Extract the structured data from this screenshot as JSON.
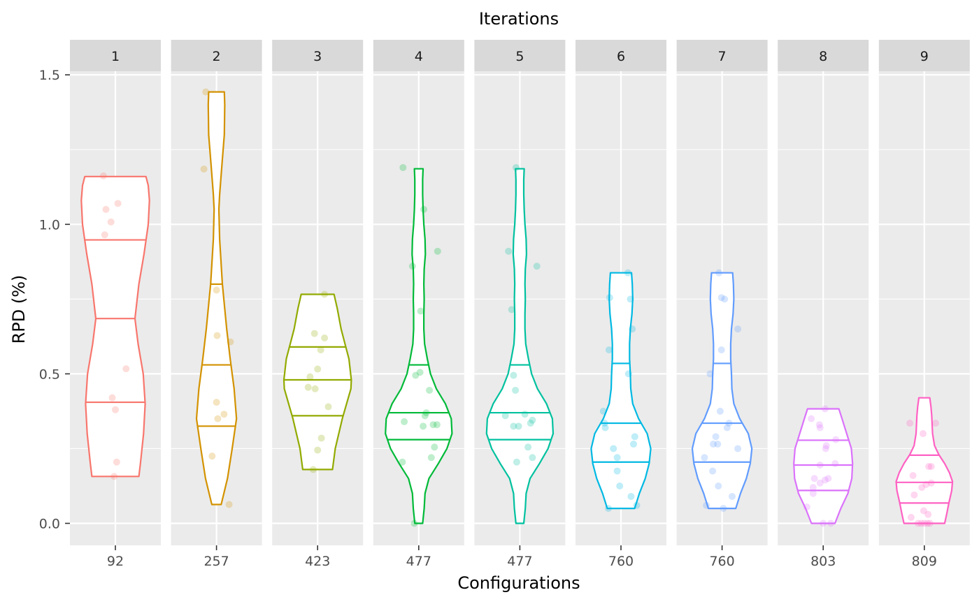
{
  "chart_data": {
    "type": "violin",
    "title": "Iterations",
    "xlabel": "Configurations",
    "ylabel": "RPD (%)",
    "ylim": [
      -0.075,
      1.61
    ],
    "yticks": [
      0.0,
      0.5,
      1.0,
      1.5
    ],
    "ytick_labels": [
      "0.0",
      "0.5",
      "1.0",
      "1.5"
    ],
    "grid": true,
    "legend": "none",
    "panels": [
      {
        "strip": "1",
        "configuration": "92",
        "color": "#F8766D",
        "quantiles": [
          0.405,
          0.685,
          0.948
        ],
        "profile": [
          [
            0.157,
            0.6
          ],
          [
            0.2,
            0.64
          ],
          [
            0.3,
            0.72
          ],
          [
            0.4,
            0.76
          ],
          [
            0.5,
            0.71
          ],
          [
            0.6,
            0.58
          ],
          [
            0.685,
            0.5
          ],
          [
            0.8,
            0.6
          ],
          [
            0.9,
            0.73
          ],
          [
            1.0,
            0.84
          ],
          [
            1.08,
            0.87
          ],
          [
            1.13,
            0.84
          ],
          [
            1.16,
            0.78
          ]
        ],
        "points": [
          [
            0.157,
            -0.02
          ],
          [
            0.205,
            0.02
          ],
          [
            0.38,
            0.0
          ],
          [
            0.42,
            -0.05
          ],
          [
            0.517,
            0.17
          ],
          [
            0.965,
            -0.17
          ],
          [
            1.008,
            -0.07
          ],
          [
            1.05,
            -0.15
          ],
          [
            1.07,
            0.04
          ],
          [
            1.162,
            -0.19
          ]
        ]
      },
      {
        "strip": "2",
        "configuration": "257",
        "color": "#D39200",
        "quantiles": [
          0.325,
          0.53,
          0.8
        ],
        "profile": [
          [
            0.063,
            0.12
          ],
          [
            0.15,
            0.28
          ],
          [
            0.25,
            0.4
          ],
          [
            0.35,
            0.51
          ],
          [
            0.45,
            0.45
          ],
          [
            0.55,
            0.35
          ],
          [
            0.65,
            0.26
          ],
          [
            0.8,
            0.15
          ],
          [
            0.95,
            0.08
          ],
          [
            1.05,
            0.06
          ],
          [
            1.1,
            0.08
          ],
          [
            1.2,
            0.14
          ],
          [
            1.3,
            0.2
          ],
          [
            1.4,
            0.21
          ],
          [
            1.443,
            0.2
          ]
        ],
        "points": [
          [
            0.063,
            0.2
          ],
          [
            0.225,
            -0.07
          ],
          [
            0.35,
            0.02
          ],
          [
            0.365,
            0.12
          ],
          [
            0.405,
            0.0
          ],
          [
            0.607,
            0.22
          ],
          [
            0.628,
            0.01
          ],
          [
            0.78,
            0.0
          ],
          [
            1.185,
            -0.2
          ],
          [
            1.443,
            -0.17
          ]
        ]
      },
      {
        "strip": "3",
        "configuration": "423",
        "color": "#93AA00",
        "quantiles": [
          0.36,
          0.48,
          0.59
        ],
        "profile": [
          [
            0.18,
            0.38
          ],
          [
            0.25,
            0.45
          ],
          [
            0.35,
            0.63
          ],
          [
            0.45,
            0.85
          ],
          [
            0.48,
            0.86
          ],
          [
            0.55,
            0.8
          ],
          [
            0.6,
            0.7
          ],
          [
            0.65,
            0.6
          ],
          [
            0.72,
            0.5
          ],
          [
            0.766,
            0.42
          ]
        ],
        "points": [
          [
            0.18,
            -0.07
          ],
          [
            0.245,
            0.0
          ],
          [
            0.285,
            0.06
          ],
          [
            0.39,
            0.17
          ],
          [
            0.45,
            -0.04
          ],
          [
            0.455,
            -0.15
          ],
          [
            0.49,
            -0.12
          ],
          [
            0.516,
            0.0
          ],
          [
            0.58,
            0.05
          ],
          [
            0.62,
            0.11
          ],
          [
            0.635,
            -0.05
          ],
          [
            0.766,
            0.11
          ]
        ]
      },
      {
        "strip": "4",
        "configuration": "477",
        "color": "#00BA38",
        "quantiles": [
          0.28,
          0.37,
          0.53
        ],
        "profile": [
          [
            0.0,
            0.1
          ],
          [
            0.05,
            0.14
          ],
          [
            0.1,
            0.16
          ],
          [
            0.15,
            0.26
          ],
          [
            0.2,
            0.5
          ],
          [
            0.25,
            0.72
          ],
          [
            0.3,
            0.85
          ],
          [
            0.35,
            0.83
          ],
          [
            0.4,
            0.68
          ],
          [
            0.45,
            0.45
          ],
          [
            0.5,
            0.3
          ],
          [
            0.55,
            0.22
          ],
          [
            0.6,
            0.15
          ],
          [
            0.65,
            0.13
          ],
          [
            0.7,
            0.13
          ],
          [
            0.75,
            0.14
          ],
          [
            0.8,
            0.13
          ],
          [
            0.85,
            0.14
          ],
          [
            0.9,
            0.17
          ],
          [
            0.95,
            0.16
          ],
          [
            1.0,
            0.13
          ],
          [
            1.05,
            0.11
          ],
          [
            1.1,
            0.1
          ],
          [
            1.15,
            0.1
          ],
          [
            1.186,
            0.11
          ]
        ],
        "points": [
          [
            0.0,
            -0.07
          ],
          [
            0.205,
            -0.26
          ],
          [
            0.22,
            0.2
          ],
          [
            0.255,
            0.25
          ],
          [
            0.325,
            0.07
          ],
          [
            0.33,
            0.23
          ],
          [
            0.33,
            0.29
          ],
          [
            0.34,
            -0.23
          ],
          [
            0.36,
            0.1
          ],
          [
            0.37,
            0.12
          ],
          [
            0.445,
            0.17
          ],
          [
            0.495,
            -0.05
          ],
          [
            0.505,
            0.02
          ],
          [
            0.71,
            0.03
          ],
          [
            0.86,
            -0.1
          ],
          [
            0.91,
            0.3
          ],
          [
            1.05,
            0.08
          ],
          [
            1.19,
            -0.25
          ]
        ]
      },
      {
        "strip": "5",
        "configuration": "477",
        "color": "#00C19F",
        "quantiles": [
          0.28,
          0.37,
          0.53
        ],
        "profile": [
          [
            0.0,
            0.1
          ],
          [
            0.05,
            0.14
          ],
          [
            0.1,
            0.16
          ],
          [
            0.15,
            0.26
          ],
          [
            0.2,
            0.5
          ],
          [
            0.25,
            0.72
          ],
          [
            0.3,
            0.85
          ],
          [
            0.35,
            0.83
          ],
          [
            0.4,
            0.68
          ],
          [
            0.45,
            0.45
          ],
          [
            0.5,
            0.3
          ],
          [
            0.55,
            0.22
          ],
          [
            0.6,
            0.15
          ],
          [
            0.65,
            0.13
          ],
          [
            0.7,
            0.13
          ],
          [
            0.75,
            0.14
          ],
          [
            0.8,
            0.13
          ],
          [
            0.85,
            0.14
          ],
          [
            0.9,
            0.17
          ],
          [
            0.95,
            0.16
          ],
          [
            1.0,
            0.13
          ],
          [
            1.05,
            0.11
          ],
          [
            1.1,
            0.1
          ],
          [
            1.15,
            0.1
          ],
          [
            1.186,
            0.11
          ]
        ],
        "points": [
          [
            0.205,
            -0.05
          ],
          [
            0.22,
            0.2
          ],
          [
            0.255,
            0.13
          ],
          [
            0.325,
            -0.1
          ],
          [
            0.325,
            -0.02
          ],
          [
            0.335,
            0.17
          ],
          [
            0.345,
            0.2
          ],
          [
            0.36,
            -0.23
          ],
          [
            0.365,
            0.08
          ],
          [
            0.445,
            -0.07
          ],
          [
            0.495,
            -0.1
          ],
          [
            0.715,
            -0.13
          ],
          [
            0.86,
            0.27
          ],
          [
            0.91,
            -0.18
          ],
          [
            1.19,
            -0.06
          ]
        ]
      },
      {
        "strip": "6",
        "configuration": "760",
        "color": "#00B9E3",
        "quantiles": [
          0.205,
          0.335,
          0.535
        ],
        "profile": [
          [
            0.05,
            0.35
          ],
          [
            0.1,
            0.47
          ],
          [
            0.15,
            0.62
          ],
          [
            0.2,
            0.72
          ],
          [
            0.25,
            0.76
          ],
          [
            0.3,
            0.67
          ],
          [
            0.35,
            0.45
          ],
          [
            0.4,
            0.3
          ],
          [
            0.45,
            0.25
          ],
          [
            0.5,
            0.24
          ],
          [
            0.55,
            0.22
          ],
          [
            0.6,
            0.22
          ],
          [
            0.65,
            0.24
          ],
          [
            0.7,
            0.28
          ],
          [
            0.75,
            0.3
          ],
          [
            0.8,
            0.29
          ],
          [
            0.838,
            0.27
          ]
        ],
        "points": [
          [
            0.05,
            -0.2
          ],
          [
            0.06,
            0.25
          ],
          [
            0.09,
            0.16
          ],
          [
            0.125,
            -0.02
          ],
          [
            0.175,
            -0.06
          ],
          [
            0.22,
            -0.06
          ],
          [
            0.25,
            -0.12
          ],
          [
            0.265,
            0.2
          ],
          [
            0.29,
            0.22
          ],
          [
            0.32,
            -0.25
          ],
          [
            0.335,
            -0.26
          ],
          [
            0.375,
            -0.28
          ],
          [
            0.5,
            0.12
          ],
          [
            0.58,
            -0.19
          ],
          [
            0.65,
            0.18
          ],
          [
            0.75,
            0.15
          ],
          [
            0.755,
            -0.18
          ],
          [
            0.838,
            0.11
          ]
        ]
      },
      {
        "strip": "7",
        "configuration": "760",
        "color": "#619CFF",
        "quantiles": [
          0.205,
          0.335,
          0.535
        ],
        "profile": [
          [
            0.05,
            0.35
          ],
          [
            0.1,
            0.47
          ],
          [
            0.15,
            0.62
          ],
          [
            0.2,
            0.72
          ],
          [
            0.25,
            0.76
          ],
          [
            0.3,
            0.67
          ],
          [
            0.35,
            0.45
          ],
          [
            0.4,
            0.3
          ],
          [
            0.45,
            0.25
          ],
          [
            0.5,
            0.24
          ],
          [
            0.55,
            0.22
          ],
          [
            0.6,
            0.22
          ],
          [
            0.65,
            0.24
          ],
          [
            0.7,
            0.28
          ],
          [
            0.75,
            0.3
          ],
          [
            0.8,
            0.29
          ],
          [
            0.838,
            0.27
          ]
        ],
        "points": [
          [
            0.05,
            0.02
          ],
          [
            0.06,
            -0.25
          ],
          [
            0.09,
            0.16
          ],
          [
            0.125,
            -0.06
          ],
          [
            0.175,
            -0.15
          ],
          [
            0.22,
            -0.28
          ],
          [
            0.25,
            0.25
          ],
          [
            0.265,
            -0.07
          ],
          [
            0.265,
            -0.14
          ],
          [
            0.29,
            -0.1
          ],
          [
            0.32,
            0.08
          ],
          [
            0.335,
            0.11
          ],
          [
            0.375,
            -0.03
          ],
          [
            0.5,
            -0.19
          ],
          [
            0.58,
            -0.01
          ],
          [
            0.65,
            0.25
          ],
          [
            0.75,
            0.04
          ],
          [
            0.755,
            -0.01
          ],
          [
            0.838,
            -0.05
          ]
        ]
      },
      {
        "strip": "8",
        "configuration": "803",
        "color": "#DB72FB",
        "quantiles": [
          0.11,
          0.195,
          0.278
        ],
        "profile": [
          [
            0.0,
            0.3
          ],
          [
            0.05,
            0.45
          ],
          [
            0.1,
            0.63
          ],
          [
            0.15,
            0.73
          ],
          [
            0.2,
            0.75
          ],
          [
            0.25,
            0.72
          ],
          [
            0.3,
            0.6
          ],
          [
            0.35,
            0.48
          ],
          [
            0.383,
            0.4
          ]
        ],
        "points": [
          [
            0.0,
            0.12
          ],
          [
            0.0,
            0.0
          ],
          [
            0.055,
            -0.26
          ],
          [
            0.1,
            -0.16
          ],
          [
            0.12,
            -0.16
          ],
          [
            0.135,
            -0.05
          ],
          [
            0.145,
            0.03
          ],
          [
            0.15,
            -0.14
          ],
          [
            0.15,
            0.08
          ],
          [
            0.195,
            -0.05
          ],
          [
            0.2,
            0.19
          ],
          [
            0.25,
            0.04
          ],
          [
            0.26,
            0.05
          ],
          [
            0.28,
            0.2
          ],
          [
            0.32,
            -0.05
          ],
          [
            0.33,
            -0.06
          ],
          [
            0.35,
            -0.19
          ],
          [
            0.383,
            0.03
          ]
        ]
      },
      {
        "strip": "9",
        "configuration": "809",
        "color": "#FF61C3",
        "quantiles": [
          0.068,
          0.137,
          0.228
        ],
        "profile": [
          [
            0.0,
            0.52
          ],
          [
            0.03,
            0.57
          ],
          [
            0.07,
            0.63
          ],
          [
            0.11,
            0.7
          ],
          [
            0.14,
            0.72
          ],
          [
            0.17,
            0.64
          ],
          [
            0.2,
            0.52
          ],
          [
            0.23,
            0.37
          ],
          [
            0.26,
            0.26
          ],
          [
            0.3,
            0.21
          ],
          [
            0.33,
            0.2
          ],
          [
            0.36,
            0.19
          ],
          [
            0.39,
            0.17
          ],
          [
            0.42,
            0.14
          ]
        ],
        "points": [
          [
            0.0,
            -0.1
          ],
          [
            0.0,
            -0.05
          ],
          [
            0.0,
            0.0
          ],
          [
            0.0,
            0.05
          ],
          [
            0.0,
            0.09
          ],
          [
            0.02,
            -0.21
          ],
          [
            0.03,
            0.06
          ],
          [
            0.042,
            -0.01
          ],
          [
            0.095,
            -0.16
          ],
          [
            0.12,
            -0.04
          ],
          [
            0.13,
            0.03
          ],
          [
            0.135,
            0.11
          ],
          [
            0.16,
            -0.18
          ],
          [
            0.19,
            0.11
          ],
          [
            0.19,
            0.07
          ],
          [
            0.3,
            -0.02
          ],
          [
            0.335,
            -0.23
          ],
          [
            0.335,
            0.18
          ]
        ]
      }
    ]
  }
}
